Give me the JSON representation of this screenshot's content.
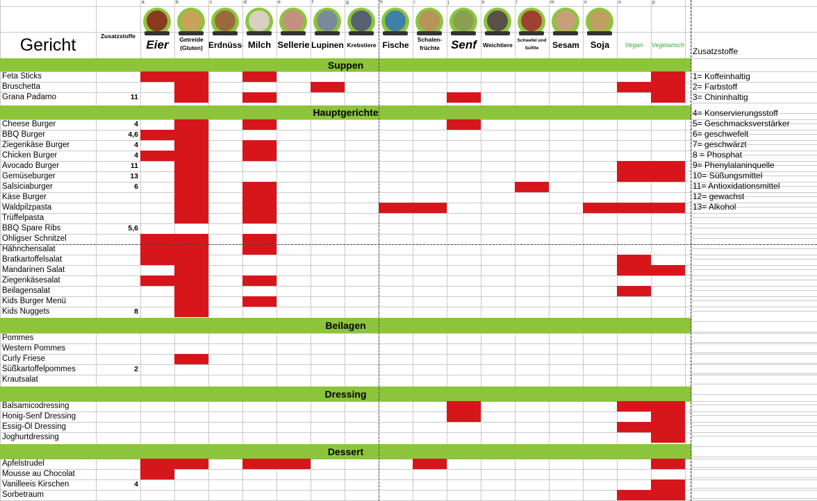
{
  "header": {
    "gericht": "Gericht",
    "zusatzstoffe_col": "Zusatzstoffe",
    "legend_title": "Zusatzstoffe"
  },
  "allergens": [
    {
      "letter": "a",
      "label": "Eier",
      "size": "big",
      "color": "#8a3a20"
    },
    {
      "letter": "b",
      "label": "Getreide (Gluten)",
      "size": "tiny",
      "color": "#c9a35a"
    },
    {
      "letter": "c",
      "label": "Erdnüsse",
      "size": "small",
      "color": "#9b6a3a"
    },
    {
      "letter": "d",
      "label": "Milch",
      "size": "mid",
      "color": "#d8d0c0"
    },
    {
      "letter": "e",
      "label": "Sellerie",
      "size": "mid",
      "color": "#c59080"
    },
    {
      "letter": "f",
      "label": "Lupinen",
      "size": "small",
      "color": "#7a8a9a"
    },
    {
      "letter": "g",
      "label": "Krebstiere",
      "size": "tiny",
      "color": "#556070"
    },
    {
      "letter": "h",
      "label": "Fische",
      "size": "small",
      "color": "#3f7fa8"
    },
    {
      "letter": "i",
      "label": "Schalen-früchte",
      "size": "tiny",
      "color": "#b8945a"
    },
    {
      "letter": "j",
      "label": "Senf",
      "size": "big",
      "color": "#8aa050"
    },
    {
      "letter": "k",
      "label": "Weichtiere",
      "size": "tiny",
      "color": "#5a5045"
    },
    {
      "letter": "l",
      "label": "Schwefel und Sulfite",
      "size": "micro",
      "color": "#a04030"
    },
    {
      "letter": "m",
      "label": "Sesam",
      "size": "small",
      "color": "#c8a078"
    },
    {
      "letter": "n",
      "label": "Soja",
      "size": "mid",
      "color": "#c0a060"
    },
    {
      "letter": "o",
      "label": "Vegan",
      "size": "logo",
      "color": "#3aa040"
    },
    {
      "letter": "p",
      "label": "Vegetarisch",
      "size": "logo",
      "color": "#3aa040"
    }
  ],
  "legend": [
    "1= Koffeinhaltig",
    "2= Farbstoff",
    "3= Chininhaltig",
    "4= Konservierungsstoff",
    "5= Geschmacksverstärker",
    "6= geschwefelt",
    "7= geschwärzt",
    "8 = Phosphat",
    "9= Phenylalaninquelle",
    "10= Süßungsmittel",
    "11= Antioxidationsmittel",
    "12= gewachst",
    "13= Alkohol"
  ],
  "sections": [
    {
      "title": "Suppen",
      "rows": [
        {
          "name": "Feta Sticks",
          "z": "",
          "m": [
            0,
            1,
            3,
            15
          ]
        },
        {
          "name": "Bruschetta",
          "z": "",
          "m": [
            1,
            5,
            14,
            15
          ]
        },
        {
          "name": "Grana Padamo",
          "z": "11",
          "m": [
            1,
            3,
            9,
            15
          ]
        }
      ]
    },
    {
      "title": "Hauptgerichte",
      "rows": [
        {
          "name": "Cheese Burger",
          "z": "4",
          "m": [
            1,
            3,
            9
          ]
        },
        {
          "name": "BBQ Burger",
          "z": "4,6",
          "m": [
            0,
            1
          ]
        },
        {
          "name": "Ziegenkäse Burger",
          "z": "4",
          "m": [
            1,
            3
          ]
        },
        {
          "name": "Chicken Burger",
          "z": "4",
          "m": [
            0,
            1,
            3
          ]
        },
        {
          "name": "Avocado Burger",
          "z": "11",
          "m": [
            1,
            14,
            15
          ]
        },
        {
          "name": "Gemüseburger",
          "z": "13",
          "m": [
            1,
            14,
            15
          ]
        },
        {
          "name": "Salsiciaburger",
          "z": "6",
          "m": [
            1,
            3,
            11
          ]
        },
        {
          "name": "Käse Burger",
          "z": "",
          "m": [
            1,
            3
          ]
        },
        {
          "name": "Waldpilzpasta",
          "z": "",
          "m": [
            1,
            3,
            7,
            8,
            13,
            14,
            15
          ]
        },
        {
          "name": "Trüffelpasta",
          "z": "",
          "m": [
            1,
            3
          ]
        },
        {
          "name": "BBQ Spare Ribs",
          "z": "5,6",
          "m": []
        },
        {
          "name": "Ohligser Schnitzel",
          "z": "",
          "m": [
            0,
            1,
            3
          ]
        },
        {
          "name": "Hähnchensalat",
          "z": "",
          "m": [
            0,
            1,
            3
          ]
        },
        {
          "name": "Bratkartoffelsalat",
          "z": "",
          "m": [
            0,
            1,
            14
          ]
        },
        {
          "name": "Mandarinen Salat",
          "z": "",
          "m": [
            1,
            14,
            15
          ]
        },
        {
          "name": "Ziegenkäsesalat",
          "z": "",
          "m": [
            0,
            1,
            3
          ]
        },
        {
          "name": "Beilagensalat",
          "z": "",
          "m": [
            1,
            14
          ]
        },
        {
          "name": "Kids Burger Menü",
          "z": "",
          "m": [
            1,
            3
          ]
        },
        {
          "name": "Kids Nuggets",
          "z": "8",
          "m": [
            1
          ]
        }
      ]
    },
    {
      "title": "Beilagen",
      "rows": [
        {
          "name": "Pommes",
          "z": "",
          "m": []
        },
        {
          "name": "Western Pommes",
          "z": "",
          "m": []
        },
        {
          "name": "Curly Friese",
          "z": "",
          "m": [
            1
          ]
        },
        {
          "name": "Süßkartoffelpommes",
          "z": "2",
          "m": []
        },
        {
          "name": "Krautsalat",
          "z": "",
          "m": []
        }
      ]
    },
    {
      "title": "Dressing",
      "rows": [
        {
          "name": "Balsamicodressing",
          "z": "",
          "m": [
            9,
            14,
            15
          ]
        },
        {
          "name": "Honig-Senf Dressing",
          "z": "",
          "m": [
            9,
            15
          ]
        },
        {
          "name": "Essig-Öl Dressing",
          "z": "",
          "m": [
            14,
            15
          ]
        },
        {
          "name": "Joghurtdressing",
          "z": "",
          "m": [
            15
          ]
        }
      ]
    },
    {
      "title": "Dessert",
      "rows": [
        {
          "name": "Apfelstrudel",
          "z": "",
          "m": [
            0,
            1,
            3,
            4,
            8,
            15
          ]
        },
        {
          "name": "Mousse au Chocolat",
          "z": "",
          "m": [
            0
          ]
        },
        {
          "name": "Vanilleeis Kirschen",
          "z": "4",
          "m": [
            15
          ]
        },
        {
          "name": "Sorbetraum",
          "z": "",
          "m": [
            14,
            15
          ]
        }
      ]
    }
  ]
}
